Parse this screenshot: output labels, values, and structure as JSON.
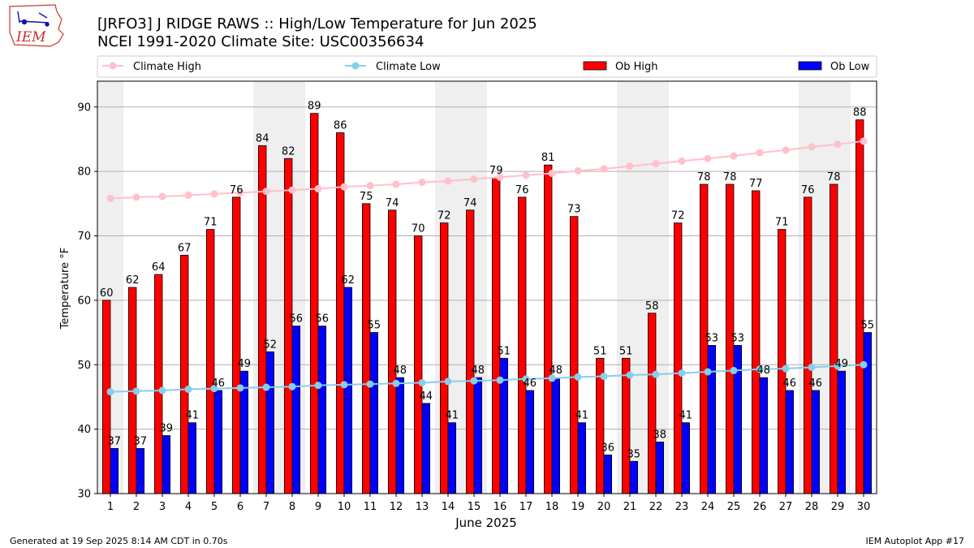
{
  "header": {
    "logo_text": "IEM",
    "title": "[JRFO3] J RIDGE RAWS :: High/Low Temperature for Jun 2025",
    "subtitle": "NCEI 1991-2020 Climate Site: USC00356634"
  },
  "footer": {
    "generated": "Generated at 19 Sep 2025 8:14 AM CDT in 0.70s",
    "app": "IEM Autoplot App #17"
  },
  "colors": {
    "ob_high": "#ff0000",
    "ob_low": "#0000ff",
    "climate_high": "#ffc0cb",
    "climate_low": "#87ceeb",
    "weekend_band": "#efefef"
  },
  "chart_data": {
    "type": "bar",
    "xlabel": "June 2025",
    "ylabel": "Temperature °F",
    "ylim": [
      30,
      94
    ],
    "yticks": [
      30,
      40,
      50,
      60,
      70,
      80,
      90
    ],
    "grid": true,
    "legend_position": "top",
    "categories": [
      "1",
      "2",
      "3",
      "4",
      "5",
      "6",
      "7",
      "8",
      "9",
      "10",
      "11",
      "12",
      "13",
      "14",
      "15",
      "16",
      "17",
      "18",
      "19",
      "20",
      "21",
      "22",
      "23",
      "24",
      "25",
      "26",
      "27",
      "28",
      "29",
      "30"
    ],
    "shaded_days": [
      1,
      7,
      8,
      14,
      15,
      21,
      22,
      28,
      29
    ],
    "series": [
      {
        "name": "Ob High",
        "kind": "bar",
        "values": [
          60,
          62,
          64,
          67,
          71,
          76,
          84,
          82,
          89,
          86,
          75,
          74,
          70,
          72,
          74,
          79,
          76,
          81,
          73,
          51,
          51,
          58,
          72,
          78,
          78,
          77,
          71,
          76,
          78,
          88
        ]
      },
      {
        "name": "Ob Low",
        "kind": "bar",
        "values": [
          37,
          37,
          39,
          41,
          46,
          49,
          52,
          56,
          56,
          62,
          55,
          48,
          44,
          41,
          48,
          51,
          46,
          48,
          41,
          36,
          35,
          38,
          41,
          53,
          53,
          48,
          46,
          46,
          49,
          55
        ]
      },
      {
        "name": "Climate High",
        "kind": "line",
        "values": [
          75.8,
          76.0,
          76.1,
          76.3,
          76.5,
          76.7,
          76.9,
          77.1,
          77.3,
          77.6,
          77.8,
          78.0,
          78.3,
          78.5,
          78.8,
          79.1,
          79.4,
          79.7,
          80.1,
          80.4,
          80.8,
          81.2,
          81.6,
          82.0,
          82.4,
          82.9,
          83.3,
          83.8,
          84.2,
          84.7
        ]
      },
      {
        "name": "Climate Low",
        "kind": "line",
        "values": [
          45.8,
          45.9,
          46.0,
          46.2,
          46.3,
          46.4,
          46.5,
          46.6,
          46.8,
          46.9,
          47.0,
          47.1,
          47.2,
          47.4,
          47.5,
          47.6,
          47.8,
          47.9,
          48.1,
          48.2,
          48.4,
          48.5,
          48.7,
          48.9,
          49.1,
          49.3,
          49.4,
          49.6,
          49.8,
          50.0
        ]
      }
    ]
  }
}
